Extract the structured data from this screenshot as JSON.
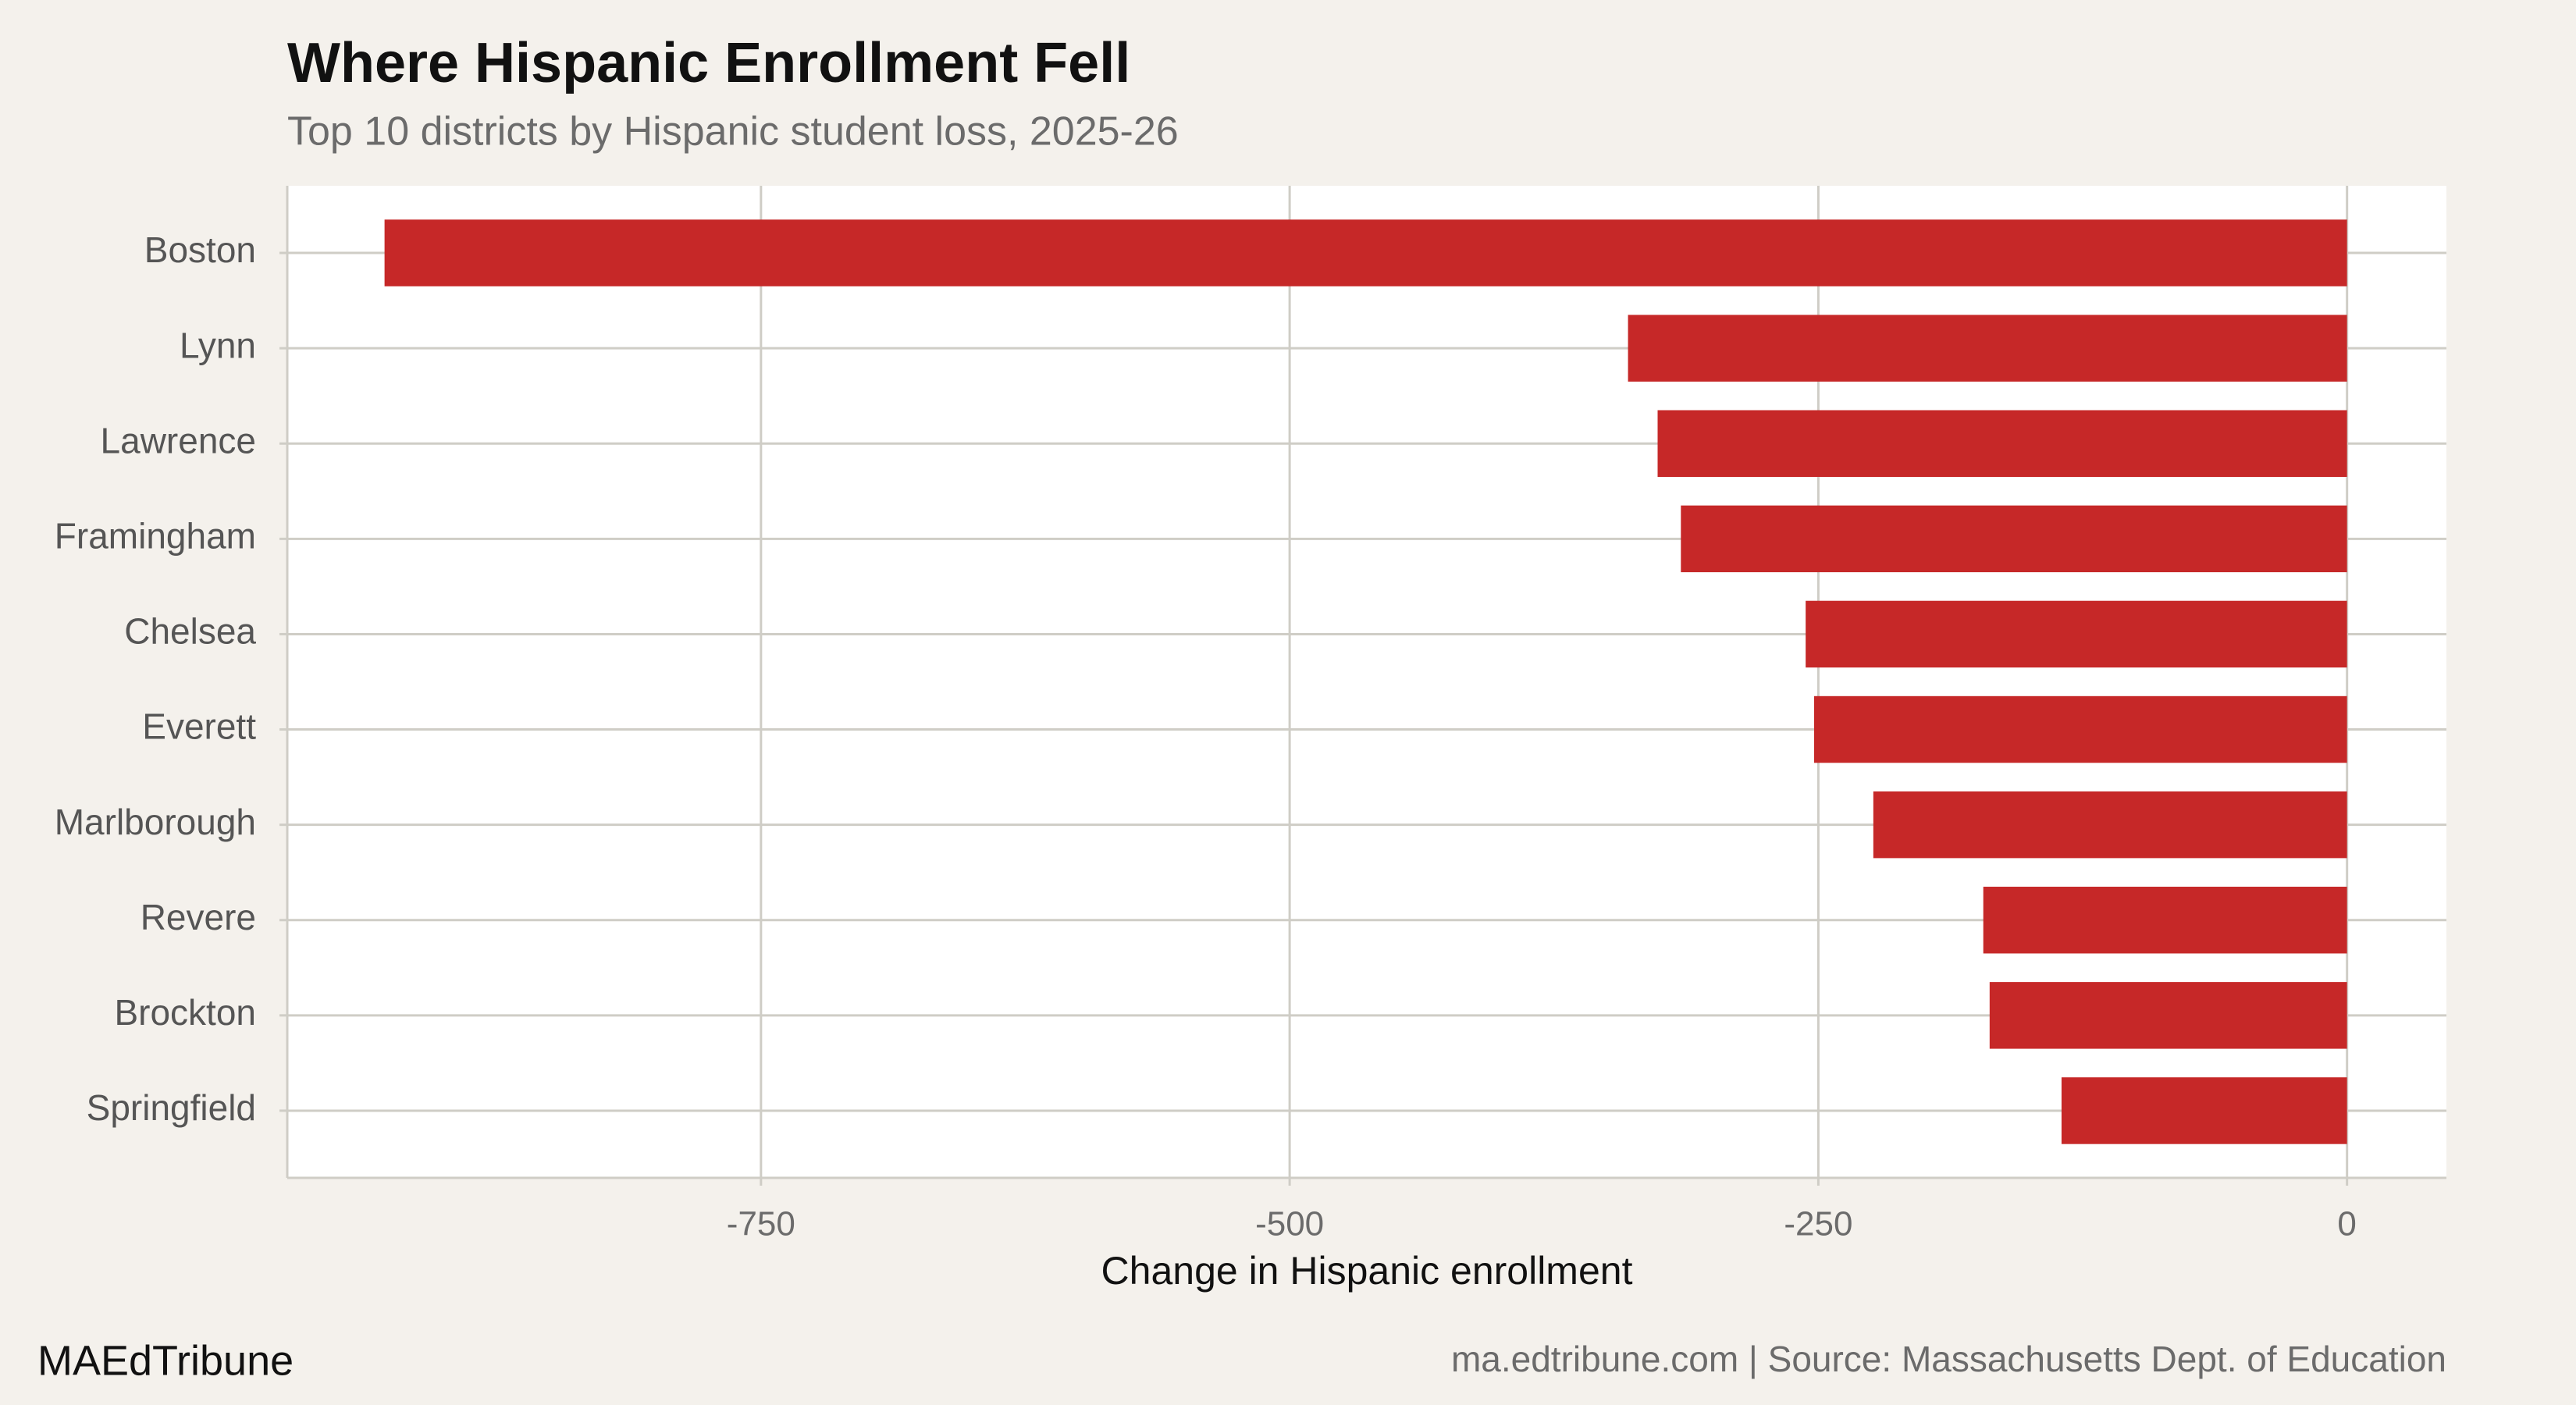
{
  "chart_data": {
    "type": "bar",
    "orientation": "horizontal",
    "title": "Where Hispanic Enrollment Fell",
    "subtitle": "Top 10 districts by Hispanic student loss, 2025-26",
    "x_label": "Change in Hispanic enrollment",
    "categories": [
      "Boston",
      "Lynn",
      "Lawrence",
      "Framingham",
      "Chelsea",
      "Everett",
      "Marlborough",
      "Revere",
      "Brockton",
      "Springfield"
    ],
    "values": [
      -928,
      -340,
      -326,
      -315,
      -256,
      -252,
      -224,
      -172,
      -169,
      -135
    ],
    "color": "#c62828",
    "xlim": [
      -974,
      47
    ],
    "xticks": [
      -750,
      -500,
      -250,
      0
    ],
    "grid": true,
    "brand": "MAEdTribune",
    "source": "ma.edtribune.com | Source: Massachusetts Dept. of Education"
  }
}
